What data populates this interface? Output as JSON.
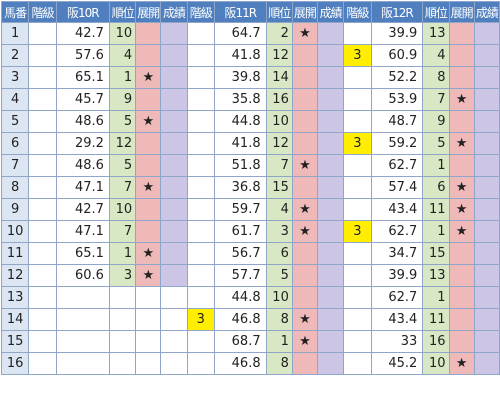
{
  "headers": [
    "馬番",
    "階級",
    "阪10R",
    "順位",
    "展開",
    "成績",
    "階級",
    "阪11R",
    "順位",
    "展開",
    "成績",
    "階級",
    "阪12R",
    "順位",
    "展開",
    "成績"
  ],
  "rows": [
    {
      "no": "1",
      "r10": {
        "cls": "",
        "val": "42.7",
        "rank": "10",
        "star": ""
      },
      "r11": {
        "cls": "",
        "val": "64.7",
        "rank": "2",
        "star": "★"
      },
      "r12": {
        "cls": "",
        "val": "39.9",
        "rank": "13",
        "star": ""
      }
    },
    {
      "no": "2",
      "r10": {
        "cls": "",
        "val": "57.6",
        "rank": "4",
        "star": ""
      },
      "r11": {
        "cls": "",
        "val": "41.8",
        "rank": "12",
        "star": ""
      },
      "r12": {
        "cls": "3",
        "val": "60.9",
        "rank": "4",
        "star": ""
      }
    },
    {
      "no": "3",
      "r10": {
        "cls": "",
        "val": "65.1",
        "rank": "1",
        "star": "★"
      },
      "r11": {
        "cls": "",
        "val": "39.8",
        "rank": "14",
        "star": ""
      },
      "r12": {
        "cls": "",
        "val": "52.2",
        "rank": "8",
        "star": ""
      }
    },
    {
      "no": "4",
      "r10": {
        "cls": "",
        "val": "45.7",
        "rank": "9",
        "star": ""
      },
      "r11": {
        "cls": "",
        "val": "35.8",
        "rank": "16",
        "star": ""
      },
      "r12": {
        "cls": "",
        "val": "53.9",
        "rank": "7",
        "star": "★"
      }
    },
    {
      "no": "5",
      "r10": {
        "cls": "",
        "val": "48.6",
        "rank": "5",
        "star": "★"
      },
      "r11": {
        "cls": "",
        "val": "44.8",
        "rank": "10",
        "star": ""
      },
      "r12": {
        "cls": "",
        "val": "48.7",
        "rank": "9",
        "star": ""
      }
    },
    {
      "no": "6",
      "r10": {
        "cls": "",
        "val": "29.2",
        "rank": "12",
        "star": ""
      },
      "r11": {
        "cls": "",
        "val": "41.8",
        "rank": "12",
        "star": ""
      },
      "r12": {
        "cls": "3",
        "val": "59.2",
        "rank": "5",
        "star": "★"
      }
    },
    {
      "no": "7",
      "r10": {
        "cls": "",
        "val": "48.6",
        "rank": "5",
        "star": ""
      },
      "r11": {
        "cls": "",
        "val": "51.8",
        "rank": "7",
        "star": "★"
      },
      "r12": {
        "cls": "",
        "val": "62.7",
        "rank": "1",
        "star": ""
      }
    },
    {
      "no": "8",
      "r10": {
        "cls": "",
        "val": "47.1",
        "rank": "7",
        "star": "★"
      },
      "r11": {
        "cls": "",
        "val": "36.8",
        "rank": "15",
        "star": ""
      },
      "r12": {
        "cls": "",
        "val": "57.4",
        "rank": "6",
        "star": "★"
      }
    },
    {
      "no": "9",
      "r10": {
        "cls": "",
        "val": "42.7",
        "rank": "10",
        "star": ""
      },
      "r11": {
        "cls": "",
        "val": "59.7",
        "rank": "4",
        "star": "★"
      },
      "r12": {
        "cls": "",
        "val": "43.4",
        "rank": "11",
        "star": "★"
      }
    },
    {
      "no": "10",
      "r10": {
        "cls": "",
        "val": "47.1",
        "rank": "7",
        "star": ""
      },
      "r11": {
        "cls": "",
        "val": "61.7",
        "rank": "3",
        "star": "★"
      },
      "r12": {
        "cls": "3",
        "val": "62.7",
        "rank": "1",
        "star": "★"
      }
    },
    {
      "no": "11",
      "r10": {
        "cls": "",
        "val": "65.1",
        "rank": "1",
        "star": "★"
      },
      "r11": {
        "cls": "",
        "val": "56.7",
        "rank": "6",
        "star": ""
      },
      "r12": {
        "cls": "",
        "val": "34.7",
        "rank": "15",
        "star": ""
      }
    },
    {
      "no": "12",
      "r10": {
        "cls": "",
        "val": "60.6",
        "rank": "3",
        "star": "★"
      },
      "r11": {
        "cls": "",
        "val": "57.7",
        "rank": "5",
        "star": ""
      },
      "r12": {
        "cls": "",
        "val": "39.9",
        "rank": "13",
        "star": ""
      }
    },
    {
      "no": "13",
      "r10": null,
      "r11": {
        "cls": "",
        "val": "44.8",
        "rank": "10",
        "star": ""
      },
      "r12": {
        "cls": "",
        "val": "62.7",
        "rank": "1",
        "star": ""
      }
    },
    {
      "no": "14",
      "r10": null,
      "r11": {
        "cls": "3",
        "val": "46.8",
        "rank": "8",
        "star": "★"
      },
      "r12": {
        "cls": "",
        "val": "43.4",
        "rank": "11",
        "star": ""
      }
    },
    {
      "no": "15",
      "r10": null,
      "r11": {
        "cls": "",
        "val": "68.7",
        "rank": "1",
        "star": "★"
      },
      "r12": {
        "cls": "",
        "val": "33",
        "rank": "16",
        "star": ""
      }
    },
    {
      "no": "16",
      "r10": null,
      "r11": {
        "cls": "",
        "val": "46.8",
        "rank": "8",
        "star": ""
      },
      "r12": {
        "cls": "",
        "val": "45.2",
        "rank": "10",
        "star": "★"
      }
    }
  ],
  "colors": {
    "header_bg": "#4f7fbf",
    "number_col": "#dce6f3",
    "rank_col": "#d8e8c4",
    "star_col": "#f0b9b9",
    "result_col": "#cdc5e5",
    "class_highlight": "#ffee00"
  }
}
